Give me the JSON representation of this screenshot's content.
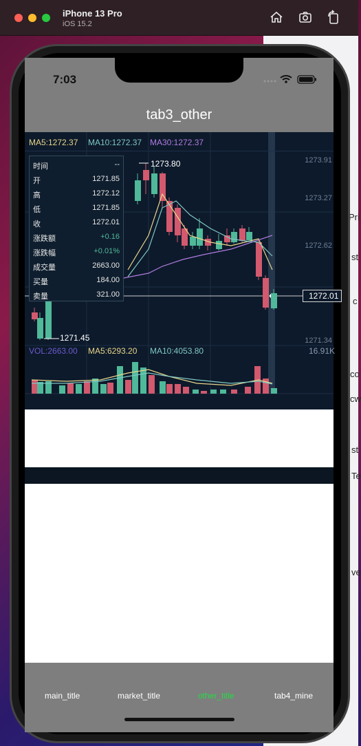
{
  "simulator": {
    "device": "iPhone 13 Pro",
    "os": "iOS 15.2",
    "icons": [
      "home-icon",
      "screenshot-icon",
      "rotate-icon"
    ]
  },
  "status_bar": {
    "time": "7:03"
  },
  "nav": {
    "title": "tab3_other"
  },
  "chart": {
    "ma": {
      "ma5": "MA5:1272.37",
      "ma10": "MA10:1272.37",
      "ma30": "MA30:1272.37"
    },
    "price_ticks": [
      "1273.91",
      "1273.27",
      "1272.62",
      "1271.34"
    ],
    "current_price": "1272.01",
    "high_label": "1273.80",
    "low_label": "1271.45",
    "volume": {
      "vol": "VOL:2663.00",
      "ma5": "MA5:6293.20",
      "ma10": "MA10:4053.80",
      "max": "16.91K"
    },
    "tooltip": [
      {
        "key": "时间",
        "value": "--"
      },
      {
        "key": "开",
        "value": "1271.85"
      },
      {
        "key": "高",
        "value": "1272.12"
      },
      {
        "key": "低",
        "value": "1271.85"
      },
      {
        "key": "收",
        "value": "1272.01"
      },
      {
        "key": "涨跌额",
        "value": "+0.16"
      },
      {
        "key": "涨跌幅",
        "value": "+0.01%"
      },
      {
        "key": "成交量",
        "value": "2663.00"
      },
      {
        "key": "买量",
        "value": "184.00"
      },
      {
        "key": "卖量",
        "value": "321.00"
      }
    ],
    "colors": {
      "up": "#4fb99a",
      "down": "#d2596e",
      "ma5": "#e8d68a",
      "ma10": "#7ec8c3",
      "ma30": "#b07ce0",
      "vol": "#6a5acd"
    }
  },
  "tabs": [
    {
      "label": "main_title",
      "active": false
    },
    {
      "label": "market_title",
      "active": false
    },
    {
      "label": "other_title",
      "active": true
    },
    {
      "label": "tab4_mine",
      "active": false
    }
  ],
  "backdrop_text": [
    "Pri",
    "st",
    "c",
    "co",
    "cw",
    "st",
    "Te",
    "ve"
  ]
}
